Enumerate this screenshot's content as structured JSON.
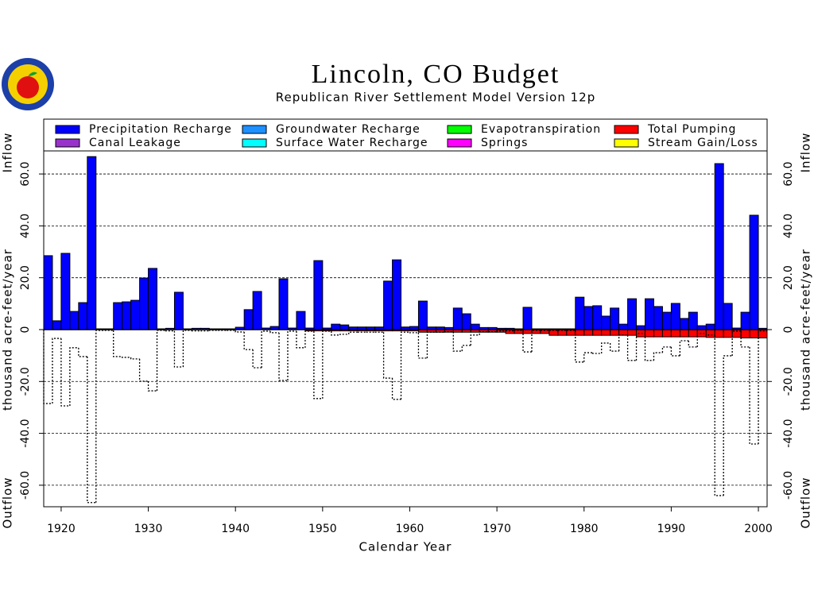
{
  "chart_data": {
    "type": "bar",
    "title": "Lincoln, CO Budget",
    "subtitle": "Republican River Settlement Model Version 12p",
    "x_label": "Calendar Year",
    "y_label": "thousand acre-feet/year",
    "inflow_label": "Inflow",
    "outflow_label": "Outflow",
    "x": [
      1918,
      1919,
      1920,
      1921,
      1922,
      1923,
      1924,
      1925,
      1926,
      1927,
      1928,
      1929,
      1930,
      1931,
      1932,
      1933,
      1934,
      1935,
      1936,
      1937,
      1938,
      1939,
      1940,
      1941,
      1942,
      1943,
      1944,
      1945,
      1946,
      1947,
      1948,
      1949,
      1950,
      1951,
      1952,
      1953,
      1954,
      1955,
      1956,
      1957,
      1958,
      1959,
      1960,
      1961,
      1962,
      1963,
      1964,
      1965,
      1966,
      1967,
      1968,
      1969,
      1970,
      1971,
      1972,
      1973,
      1974,
      1975,
      1976,
      1977,
      1978,
      1979,
      1980,
      1981,
      1982,
      1983,
      1984,
      1985,
      1986,
      1987,
      1988,
      1989,
      1990,
      1991,
      1992,
      1993,
      1994,
      1995,
      1996,
      1997,
      1998,
      1999,
      2000
    ],
    "series": [
      {
        "name": "Precipitation Recharge",
        "color": "#0000ff",
        "values": [
          28.5,
          3.4,
          29.4,
          7.0,
          10.4,
          66.7,
          0.3,
          0.3,
          10.4,
          10.7,
          11.3,
          19.9,
          23.6,
          0.3,
          0.5,
          14.4,
          0.3,
          0.5,
          0.5,
          0.3,
          0.3,
          0.3,
          0.9,
          7.7,
          14.7,
          0.6,
          1.2,
          19.6,
          0.6,
          7.0,
          0.6,
          26.6,
          0.6,
          2.1,
          1.8,
          1.0,
          1.0,
          1.0,
          1.0,
          18.7,
          26.9,
          1.0,
          1.2,
          11.0,
          1.0,
          1.0,
          0.8,
          8.3,
          6.1,
          2.1,
          0.8,
          0.8,
          0.5,
          0.5,
          0.3,
          8.6,
          0.3,
          0.3,
          0.3,
          0.3,
          0.3,
          12.5,
          8.9,
          9.2,
          5.2,
          8.3,
          2.1,
          11.9,
          1.5,
          11.9,
          8.9,
          6.7,
          10.1,
          4.3,
          6.7,
          1.5,
          2.1,
          64.0,
          10.1,
          0.6,
          6.7,
          44.1,
          0.5
        ]
      },
      {
        "name": "Groundwater Recharge",
        "color": "#1e90ff"
      },
      {
        "name": "Evapotranspiration",
        "color": "#00ff00"
      },
      {
        "name": "Total Pumping",
        "color": "#ff0000",
        "values": [
          0,
          0,
          0,
          0,
          0,
          0,
          0,
          0,
          0,
          0,
          0,
          0,
          0,
          0,
          0,
          0,
          0,
          0,
          0,
          0,
          0,
          0,
          0,
          0,
          0,
          0,
          0,
          0,
          0,
          0,
          -0.5,
          -0.5,
          -0.5,
          -0.5,
          -0.5,
          -0.5,
          -0.5,
          -0.5,
          -0.5,
          -0.5,
          -0.5,
          -0.5,
          -0.5,
          -1.0,
          -1.0,
          -1.0,
          -1.0,
          -1.0,
          -1.0,
          -1.0,
          -1.0,
          -1.0,
          -1.0,
          -1.5,
          -1.5,
          -1.5,
          -1.5,
          -1.5,
          -2.2,
          -2.2,
          -2.2,
          -2.2,
          -2.2,
          -2.2,
          -2.2,
          -2.2,
          -2.2,
          -2.2,
          -2.8,
          -2.8,
          -2.8,
          -2.8,
          -2.8,
          -2.8,
          -2.8,
          -2.8,
          -3.0,
          -3.0,
          -3.0,
          -3.0,
          -3.2,
          -3.2,
          -3.2
        ]
      },
      {
        "name": "Canal Leakage",
        "color": "#9932cc"
      },
      {
        "name": "Surface Water Recharge",
        "color": "#00ffff"
      },
      {
        "name": "Springs",
        "color": "#ff00ff"
      },
      {
        "name": "Stream Gain/Loss",
        "color": "#ffff00"
      },
      {
        "color": "#000000",
        "style": "dotted",
        "values": [
          -28.5,
          -3.4,
          -29.4,
          -7.0,
          -10.4,
          -66.7,
          -0.3,
          -0.3,
          -10.4,
          -10.7,
          -11.3,
          -19.9,
          -23.6,
          -0.3,
          -0.5,
          -14.4,
          -0.3,
          -0.5,
          -0.5,
          -0.3,
          -0.3,
          -0.3,
          -0.9,
          -7.7,
          -14.7,
          -0.6,
          -1.2,
          -19.6,
          -0.6,
          -7.0,
          -0.6,
          -26.6,
          -0.6,
          -2.1,
          -1.8,
          -1.0,
          -1.0,
          -1.0,
          -1.0,
          -18.7,
          -26.9,
          -1.0,
          -1.2,
          -11.0,
          -1.0,
          -1.0,
          -0.8,
          -8.3,
          -6.1,
          -2.1,
          -0.8,
          -0.8,
          -0.5,
          -0.5,
          -0.3,
          -8.6,
          -0.3,
          -0.3,
          -0.3,
          -0.3,
          -0.3,
          -12.5,
          -8.9,
          -9.2,
          -5.2,
          -8.3,
          -2.1,
          -11.9,
          -1.5,
          -11.9,
          -8.9,
          -6.7,
          -10.1,
          -4.3,
          -6.7,
          -1.5,
          -2.1,
          -64.0,
          -10.1,
          -0.6,
          -6.7,
          -44.1,
          -0.5
        ]
      }
    ],
    "xlim": [
      1918,
      2001
    ],
    "xticks": [
      1920,
      1930,
      1940,
      1950,
      1960,
      1970,
      1980,
      1990,
      2000
    ],
    "ylim": [
      -68.3,
      68.9
    ],
    "yticks": [
      {
        "value": -60,
        "label": "-60.0"
      },
      {
        "value": -40,
        "label": "-40.0"
      },
      {
        "value": -20,
        "label": "-20.0"
      },
      0,
      {
        "value": 20,
        "label": "20.0"
      },
      {
        "value": 40,
        "label": "40.0"
      },
      {
        "value": 60,
        "label": "60.0"
      }
    ],
    "grid": true
  }
}
